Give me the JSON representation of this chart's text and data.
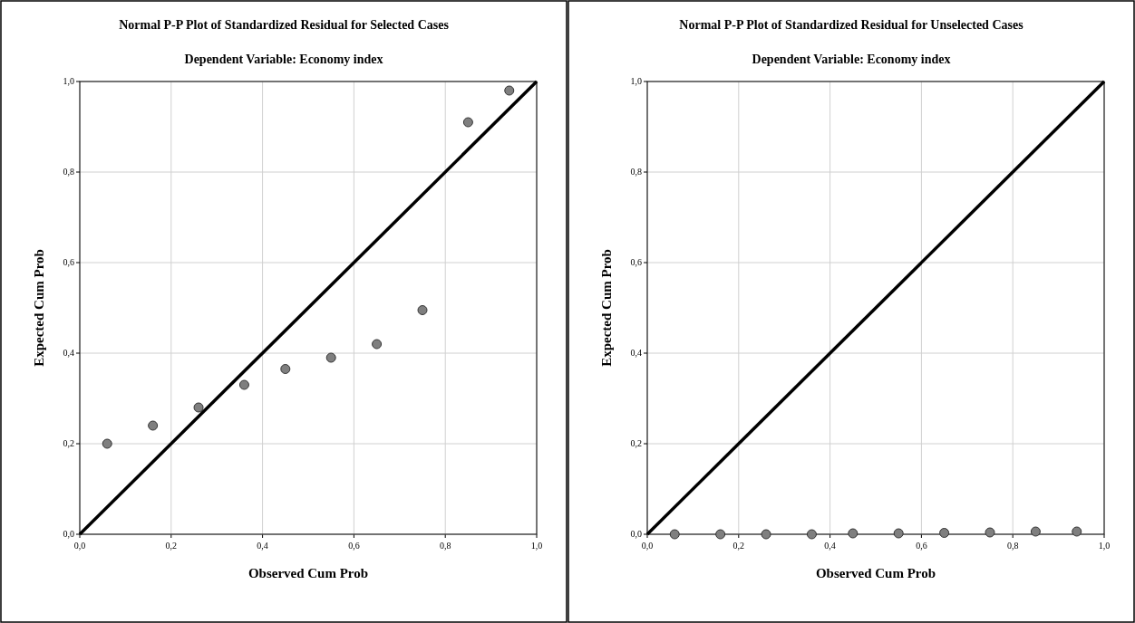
{
  "chart_data": [
    {
      "type": "scatter",
      "title": "Normal P-P Plot of Standardized Residual for Selected Cases",
      "subtitle": "Dependent Variable: Economy index",
      "xlabel": "Observed Cum Prob",
      "ylabel": "Expected Cum Prob",
      "xlim": [
        0,
        1
      ],
      "ylim": [
        0,
        1
      ],
      "xticks": [
        {
          "value": 0,
          "label": "0,0"
        },
        {
          "value": 0.2,
          "label": "0,2"
        },
        {
          "value": 0.4,
          "label": "0,4"
        },
        {
          "value": 0.6,
          "label": "0,6"
        },
        {
          "value": 0.8,
          "label": "0,8"
        },
        {
          "value": 1,
          "label": "1,0"
        }
      ],
      "yticks": [
        {
          "value": 0,
          "label": "0,0"
        },
        {
          "value": 0.2,
          "label": "0,2"
        },
        {
          "value": 0.4,
          "label": "0,4"
        },
        {
          "value": 0.6,
          "label": "0,6"
        },
        {
          "value": 0.8,
          "label": "0,8"
        },
        {
          "value": 1,
          "label": "1,0"
        }
      ],
      "grid": true,
      "series": [
        {
          "marker": "circle",
          "color": "#7f7f7f",
          "x": [
            0.06,
            0.16,
            0.26,
            0.36,
            0.45,
            0.55,
            0.65,
            0.75,
            0.85,
            0.94
          ],
          "values": [
            0.2,
            0.24,
            0.28,
            0.33,
            0.365,
            0.39,
            0.42,
            0.495,
            0.91,
            0.98
          ]
        },
        {
          "type": "line",
          "color": "#000000",
          "x": [
            0,
            1
          ],
          "values": [
            0,
            1
          ]
        }
      ]
    },
    {
      "type": "scatter",
      "title": "Normal P-P Plot of Standardized Residual for Unselected Cases",
      "subtitle": "Dependent Variable: Economy index",
      "xlabel": "Observed Cum Prob",
      "ylabel": "Expected Cum Prob",
      "xlim": [
        0,
        1
      ],
      "ylim": [
        0,
        1
      ],
      "xticks": [
        {
          "value": 0,
          "label": "0,0"
        },
        {
          "value": 0.2,
          "label": "0,2"
        },
        {
          "value": 0.4,
          "label": "0,4"
        },
        {
          "value": 0.6,
          "label": "0,6"
        },
        {
          "value": 0.8,
          "label": "0,8"
        },
        {
          "value": 1,
          "label": "1,0"
        }
      ],
      "yticks": [
        {
          "value": 0,
          "label": "0,0"
        },
        {
          "value": 0.2,
          "label": "0,2"
        },
        {
          "value": 0.4,
          "label": "0,4"
        },
        {
          "value": 0.6,
          "label": "0,6"
        },
        {
          "value": 0.8,
          "label": "0,8"
        },
        {
          "value": 1,
          "label": "1,0"
        }
      ],
      "grid": true,
      "series": [
        {
          "marker": "circle",
          "color": "#7f7f7f",
          "x": [
            0.06,
            0.16,
            0.26,
            0.36,
            0.45,
            0.55,
            0.65,
            0.75,
            0.85,
            0.94
          ],
          "values": [
            0,
            0,
            0,
            0,
            0.002,
            0.002,
            0.003,
            0.004,
            0.006,
            0.006
          ]
        },
        {
          "type": "line",
          "color": "#000000",
          "x": [
            0,
            1
          ],
          "values": [
            0,
            1
          ]
        }
      ]
    }
  ]
}
